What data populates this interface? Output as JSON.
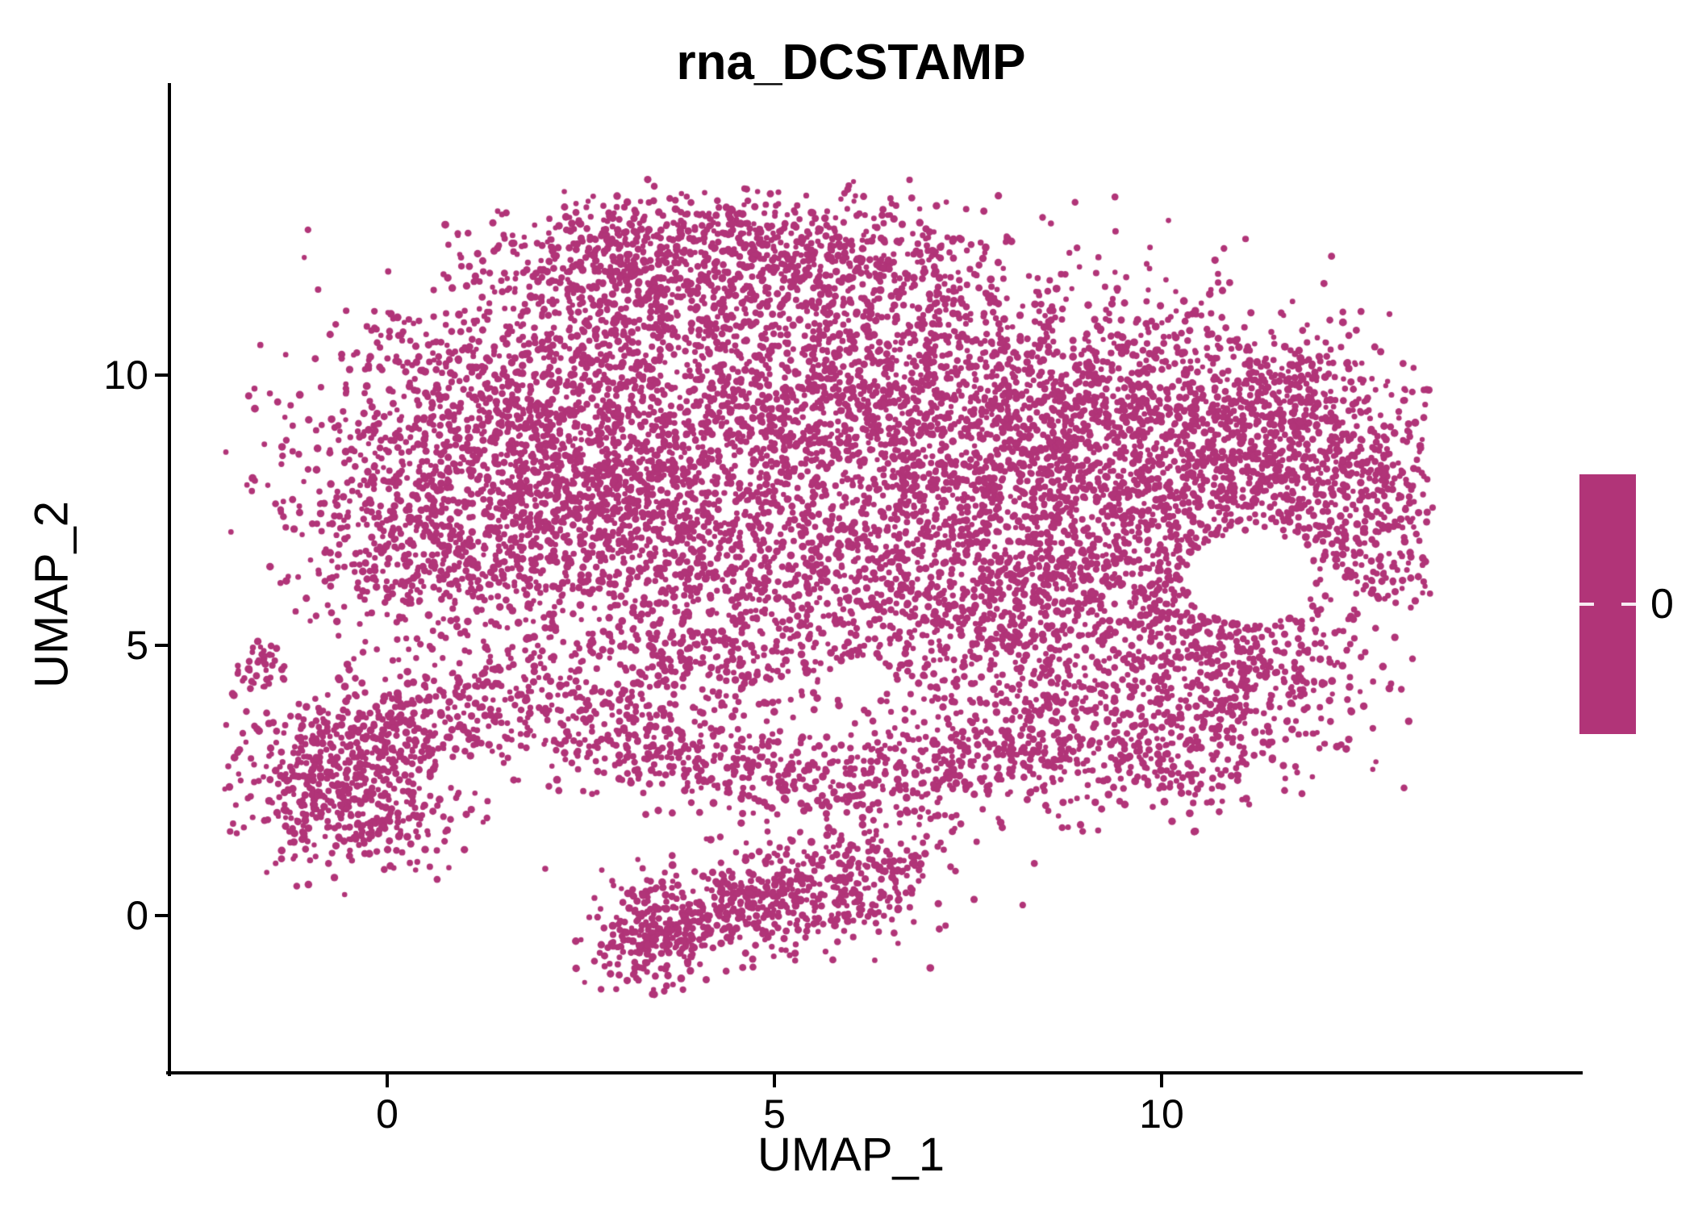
{
  "chart_data": {
    "type": "scatter",
    "title": "rna_DCSTAMP",
    "xlabel": "UMAP_1",
    "ylabel": "UMAP_2",
    "x_ticks": [
      0,
      5,
      10
    ],
    "y_ticks": [
      0,
      5,
      10
    ],
    "x_range": [
      -2.8125,
      14.7917
    ],
    "y_range": [
      -2.9104,
      14.7761
    ],
    "grid": false,
    "legend_position": "right",
    "point_color": "#B13478",
    "axis_color": "#000000",
    "background": "#FFFFFF",
    "legend": {
      "label": "0",
      "colorbar_color": "#B13478",
      "tick_color": "#FFFFFF"
    },
    "clusters": [
      [
        1.0,
        8.2,
        1.2,
        1.5,
        850
      ],
      [
        2.6,
        9.6,
        1.3,
        1.4,
        850
      ],
      [
        2.9,
        7.2,
        1.2,
        1.2,
        650
      ],
      [
        4.8,
        8.6,
        1.5,
        1.7,
        900
      ],
      [
        6.3,
        10.2,
        1.5,
        1.2,
        750
      ],
      [
        7.4,
        8.2,
        1.5,
        1.4,
        850
      ],
      [
        9.3,
        9.2,
        1.4,
        1.2,
        750
      ],
      [
        9.0,
        7.0,
        1.2,
        1.0,
        450
      ],
      [
        10.6,
        8.0,
        1.1,
        1.2,
        500
      ],
      [
        12.1,
        8.3,
        0.8,
        1.0,
        400
      ],
      [
        12.8,
        7.0,
        0.45,
        0.9,
        170
      ],
      [
        11.5,
        9.6,
        0.7,
        0.7,
        220
      ],
      [
        4.2,
        12.5,
        1.3,
        0.5,
        420
      ],
      [
        6.0,
        12.0,
        1.0,
        0.55,
        260
      ],
      [
        2.9,
        11.5,
        0.8,
        0.7,
        260
      ],
      [
        5.4,
        5.4,
        1.7,
        0.9,
        520
      ],
      [
        8.3,
        5.6,
        1.2,
        0.8,
        320
      ],
      [
        0.2,
        6.6,
        0.6,
        0.8,
        180
      ],
      [
        10.9,
        5.6,
        0.8,
        0.5,
        150
      ],
      [
        9.4,
        3.7,
        1.2,
        0.8,
        430
      ],
      [
        11.1,
        4.4,
        0.9,
        0.8,
        330
      ],
      [
        7.9,
        2.9,
        0.8,
        0.55,
        200
      ],
      [
        10.3,
        2.6,
        0.6,
        0.4,
        90
      ],
      [
        -0.6,
        2.6,
        0.7,
        0.75,
        520
      ],
      [
        0.35,
        3.6,
        0.55,
        0.5,
        140
      ],
      [
        -1.7,
        4.55,
        0.15,
        0.25,
        40
      ],
      [
        -0.2,
        1.6,
        0.5,
        0.3,
        90
      ],
      [
        1.9,
        4.2,
        0.6,
        0.5,
        140
      ],
      [
        2.9,
        3.3,
        0.9,
        0.55,
        220
      ],
      [
        4.7,
        2.8,
        1.0,
        0.5,
        210
      ],
      [
        6.3,
        2.4,
        0.7,
        0.45,
        150
      ],
      [
        3.8,
        4.6,
        0.5,
        0.4,
        100
      ],
      [
        5.2,
        0.35,
        0.85,
        0.5,
        330
      ],
      [
        3.4,
        -0.4,
        0.4,
        0.5,
        240
      ],
      [
        6.2,
        0.9,
        0.5,
        0.35,
        110
      ],
      [
        4.4,
        0.0,
        0.5,
        0.35,
        120
      ]
    ],
    "render": {
      "seed": 7,
      "point_radius": 4.0,
      "point_alpha": 1.0,
      "holes": [
        [
          11.15,
          6.25,
          0.85
        ],
        [
          6.1,
          4.3,
          0.4
        ]
      ],
      "clip": {
        "x": [
          -2.1,
          13.5
        ],
        "y": [
          -1.5,
          13.7
        ]
      }
    }
  }
}
